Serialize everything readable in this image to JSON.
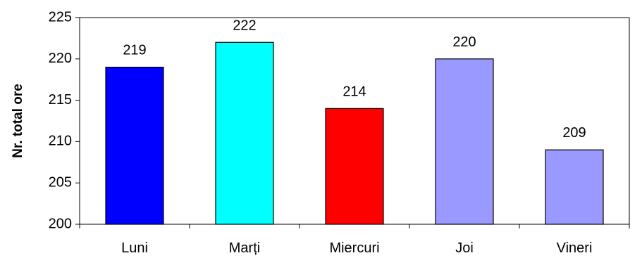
{
  "chart_data": {
    "type": "bar",
    "title": "",
    "xlabel": "",
    "ylabel": "Nr. total ore",
    "categories": [
      "Luni",
      "Marți",
      "Miercuri",
      "Joi",
      "Vineri"
    ],
    "values": [
      219,
      222,
      214,
      220,
      209
    ],
    "colors": [
      "#0000ff",
      "#00ffff",
      "#ff0000",
      "#9999ff",
      "#9999ff"
    ],
    "ylim": [
      200,
      225
    ],
    "yticks": [
      200,
      205,
      210,
      215,
      220,
      225
    ],
    "grid": false,
    "legend": "none"
  }
}
